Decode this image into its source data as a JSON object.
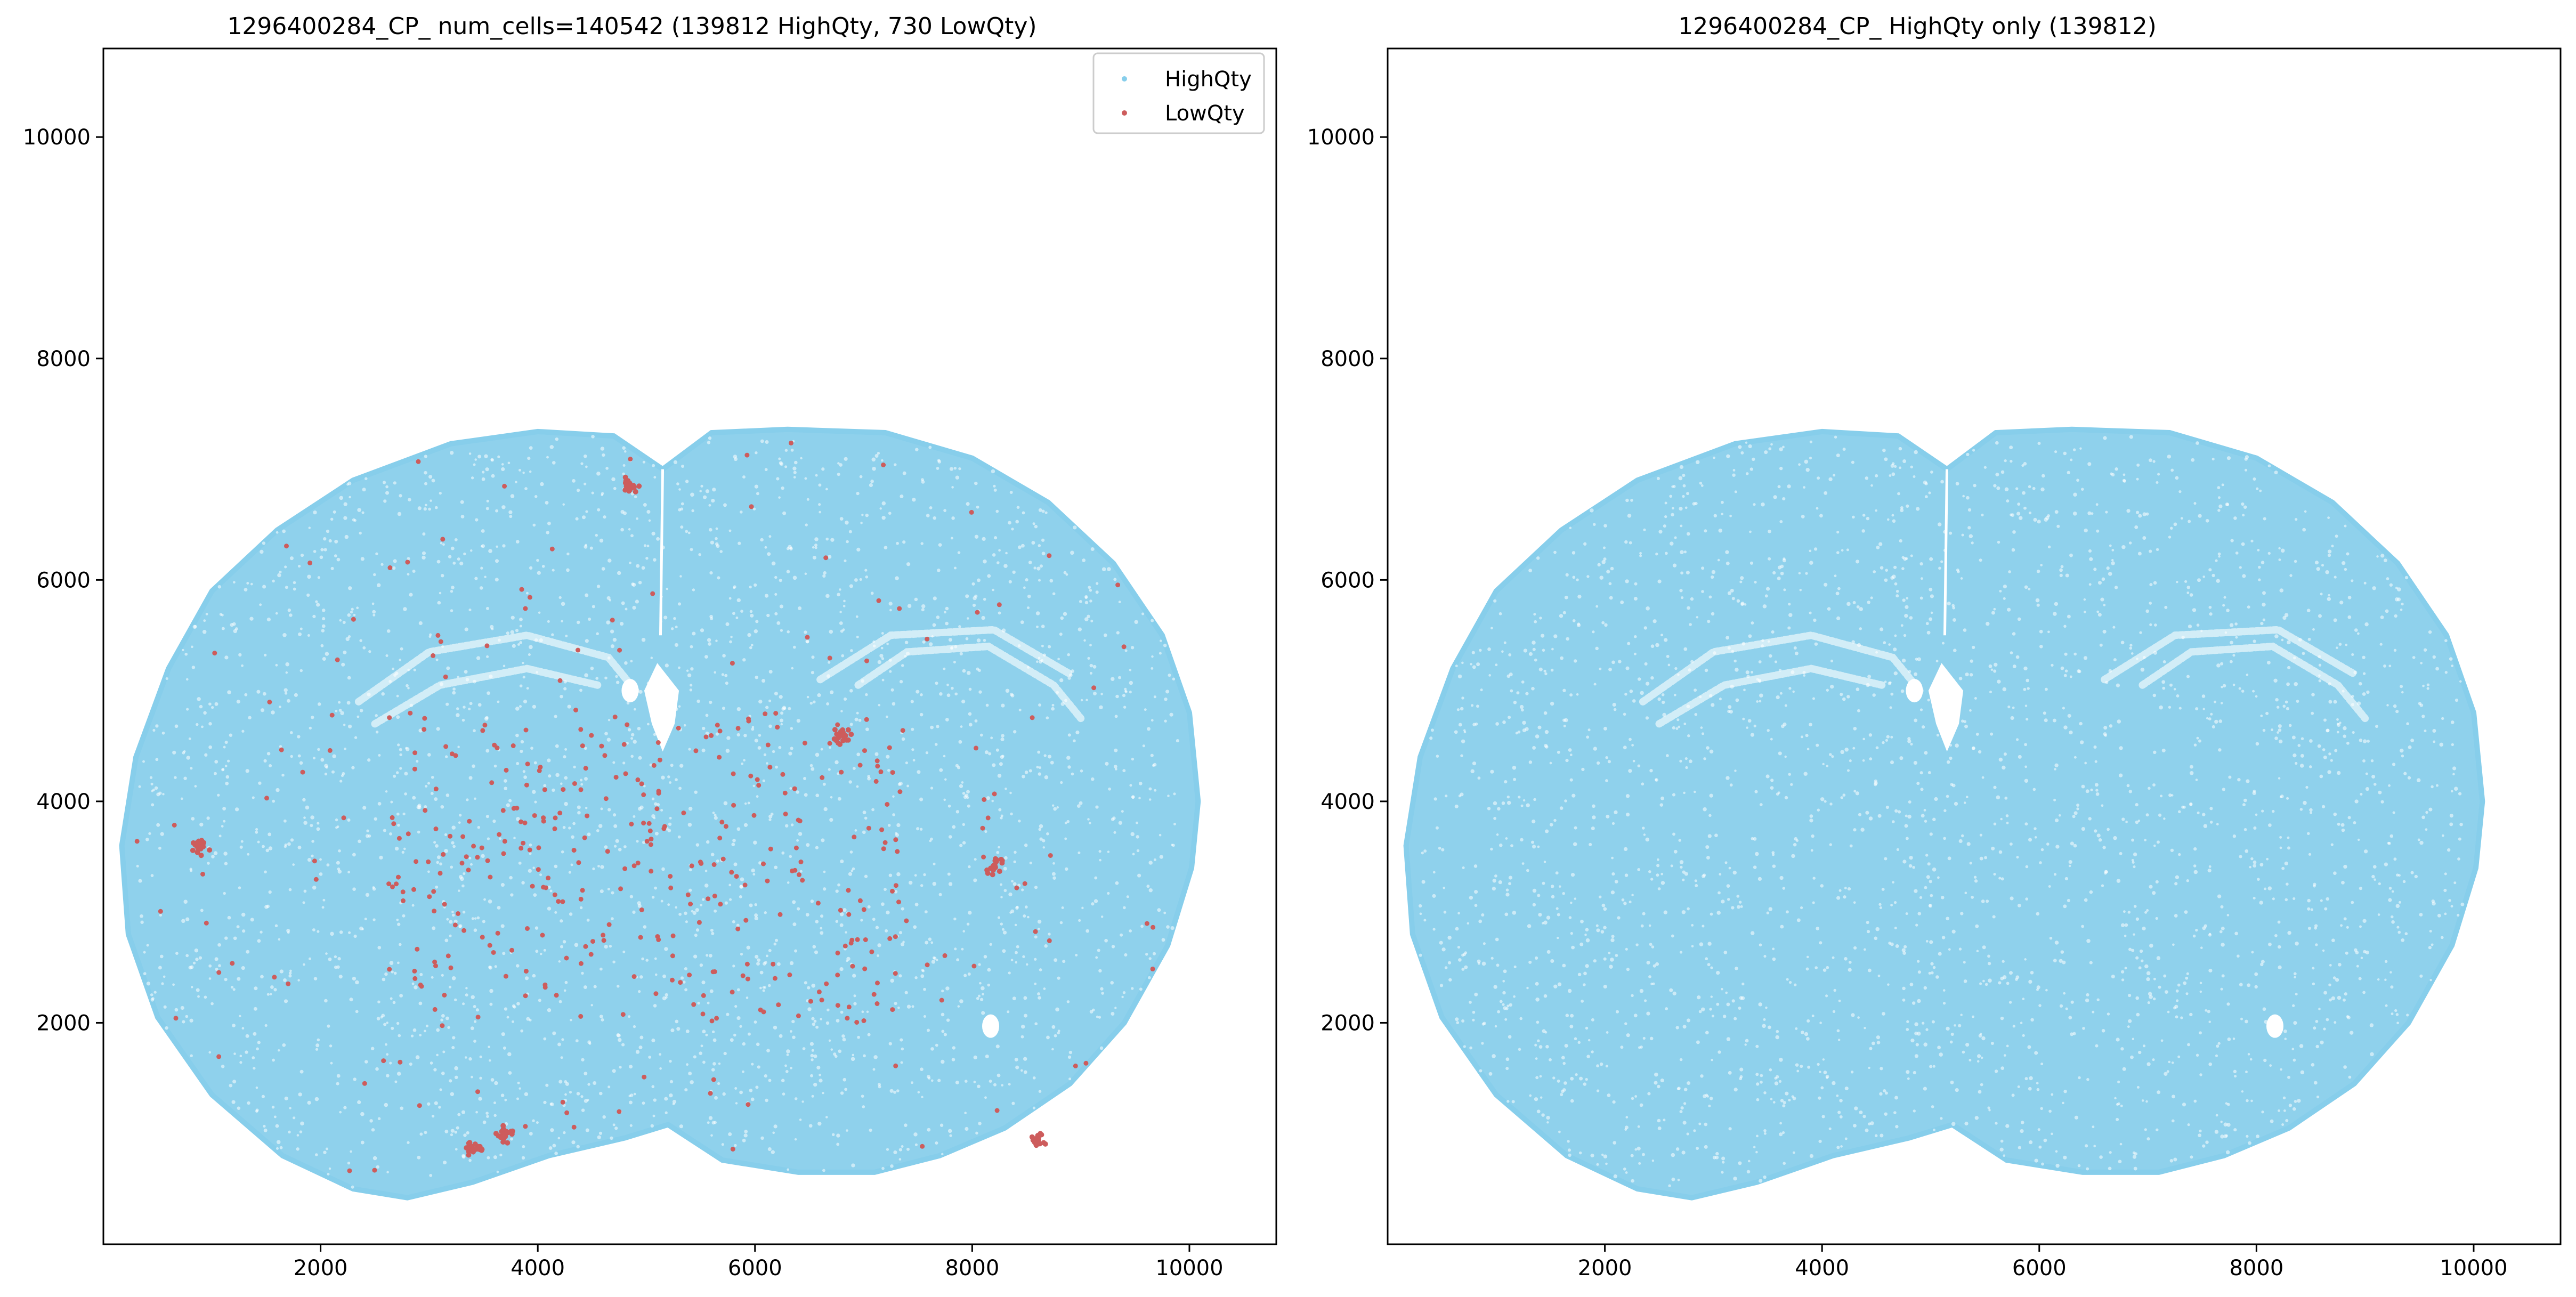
{
  "chart_data": [
    {
      "type": "scatter",
      "title": "1296400284_CP_ num_cells=140542 (139812 HighQty, 730 LowQty)",
      "xlabel": "",
      "ylabel": "",
      "xlim": [
        0,
        10800
      ],
      "ylim": [
        0,
        10800
      ],
      "xticks": [
        2000,
        4000,
        6000,
        8000,
        10000
      ],
      "yticks": [
        2000,
        4000,
        6000,
        8000,
        10000
      ],
      "xtick_labels": [
        "2000",
        "4000",
        "6000",
        "8000",
        "10000"
      ],
      "ytick_labels": [
        "2000",
        "4000",
        "6000",
        "8000",
        "10000"
      ],
      "grid": false,
      "legend_position": "top-right",
      "series": [
        {
          "name": "HighQty",
          "color": "#87CEEB",
          "count": 139812,
          "shape": "coronal-brain-section",
          "extent": {
            "x": [
              150,
              10100
            ],
            "y": [
              300,
              7400
            ]
          }
        },
        {
          "name": "LowQty",
          "color": "#CD5C5C",
          "count": 730,
          "clusters": [
            {
              "x": 4850,
              "y": 6850
            },
            {
              "x": 6800,
              "y": 4600
            },
            {
              "x": 900,
              "y": 3600
            },
            {
              "x": 8200,
              "y": 3420
            },
            {
              "x": 3700,
              "y": 1000
            },
            {
              "x": 8600,
              "y": 950
            },
            {
              "x": 3400,
              "y": 850
            }
          ]
        }
      ]
    },
    {
      "type": "scatter",
      "title": "1296400284_CP_ HighQty only (139812)",
      "xlabel": "",
      "ylabel": "",
      "xlim": [
        0,
        10800
      ],
      "ylim": [
        0,
        10800
      ],
      "xticks": [
        2000,
        4000,
        6000,
        8000,
        10000
      ],
      "yticks": [
        2000,
        4000,
        6000,
        8000,
        10000
      ],
      "xtick_labels": [
        "2000",
        "4000",
        "6000",
        "8000",
        "10000"
      ],
      "ytick_labels": [
        "2000",
        "4000",
        "6000",
        "8000",
        "10000"
      ],
      "grid": false,
      "series": [
        {
          "color": "#87CEEB",
          "count": 139812,
          "shape": "coronal-brain-section",
          "extent": {
            "x": [
              150,
              10100
            ],
            "y": [
              300,
              7400
            ]
          }
        }
      ]
    }
  ]
}
